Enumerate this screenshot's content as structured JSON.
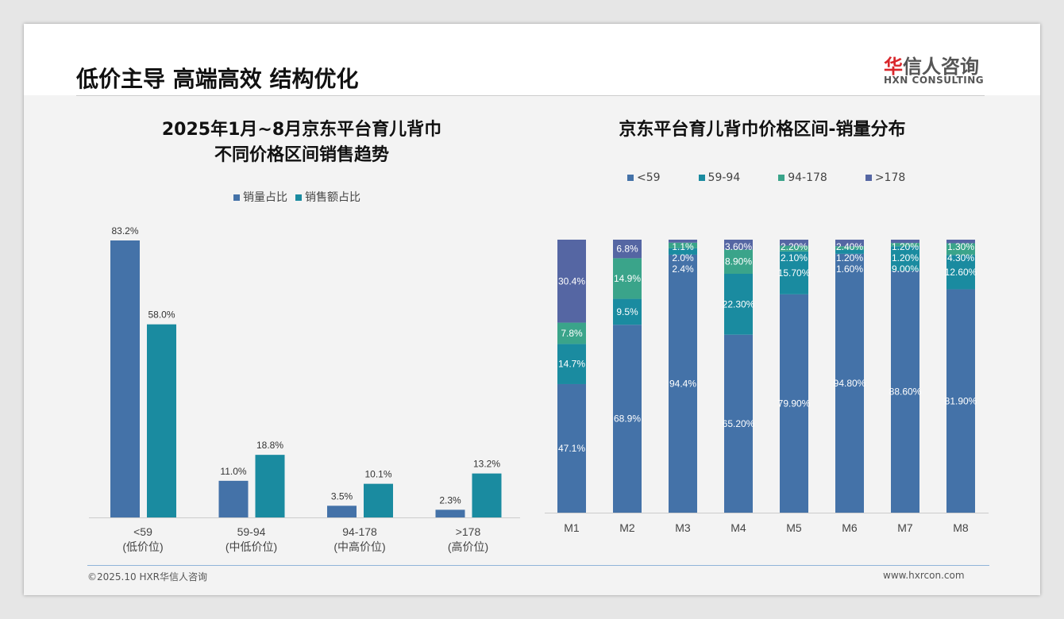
{
  "header": {
    "title": "低价主导 高端高效 结构优化",
    "logo_cn_red": "华",
    "logo_cn": "信人咨询",
    "logo_en": "HXN CONSULTING"
  },
  "footer": {
    "copyright": "©2025.10 HXR华信人咨询",
    "url": "www.hxrcon.com"
  },
  "colors": {
    "blue": "#4472a8",
    "teal": "#1a8ba0",
    "green": "#3aa48a",
    "purple": "#5566a3"
  },
  "chart_data": [
    {
      "type": "bar",
      "title": [
        "2025年1月~8月京东平台育儿背巾",
        "不同价格区间销售趋势"
      ],
      "categories": [
        "<59",
        "59-94",
        "94-178",
        ">178"
      ],
      "category_sub": [
        "(低价位)",
        "(中低价位)",
        "(中高价位)",
        "(高价位)"
      ],
      "series": [
        {
          "name": "销量占比",
          "values": [
            83.2,
            11.0,
            3.5,
            2.3
          ],
          "labels": [
            "83.2%",
            "11.0%",
            "3.5%",
            "2.3%"
          ]
        },
        {
          "name": "销售额占比",
          "values": [
            58.0,
            18.8,
            10.1,
            13.2
          ],
          "labels": [
            "58.0%",
            "18.8%",
            "10.1%",
            "13.2%"
          ]
        }
      ],
      "legend": "top",
      "ylim": [
        0,
        90
      ],
      "grid": false
    },
    {
      "type": "bar",
      "stacked": true,
      "title": "京东平台育儿背巾价格区间-销量分布",
      "categories": [
        "M1",
        "M2",
        "M3",
        "M4",
        "M5",
        "M6",
        "M7",
        "M8"
      ],
      "series": [
        {
          "name": "<59",
          "values": [
            47.1,
            68.9,
            94.4,
            65.2,
            79.9,
            94.8,
            88.6,
            81.9
          ],
          "labels": [
            "47.1%",
            "68.9%",
            "94.4%",
            "65.20%",
            "79.90%",
            "94.80%",
            "88.60%",
            "81.90%"
          ]
        },
        {
          "name": "59-94",
          "values": [
            14.7,
            9.5,
            2.4,
            22.3,
            15.7,
            1.6,
            9.0,
            12.6
          ],
          "labels": [
            "14.7%",
            "9.5%",
            "2.4%",
            "22.30%",
            "15.70%",
            "1.60%",
            "9.00%",
            "12.60%"
          ]
        },
        {
          "name": "94-178",
          "values": [
            7.8,
            14.9,
            2.0,
            8.9,
            2.1,
            1.2,
            1.2,
            4.3
          ],
          "labels": [
            "7.8%",
            "14.9%",
            "2.0%",
            "8.90%",
            "2.10%",
            "1.20%",
            "1.20%",
            "4.30%"
          ]
        },
        {
          "name": ">178",
          "values": [
            30.4,
            6.8,
            1.1,
            3.6,
            2.2,
            2.4,
            1.2,
            1.3
          ],
          "labels": [
            "30.4%",
            "6.8%",
            "1.1%",
            "3.60%",
            "2.20%",
            "2.40%",
            "1.20%",
            "1.30%"
          ]
        }
      ],
      "legend": "top",
      "ylim": [
        0,
        100
      ],
      "grid": false
    }
  ]
}
